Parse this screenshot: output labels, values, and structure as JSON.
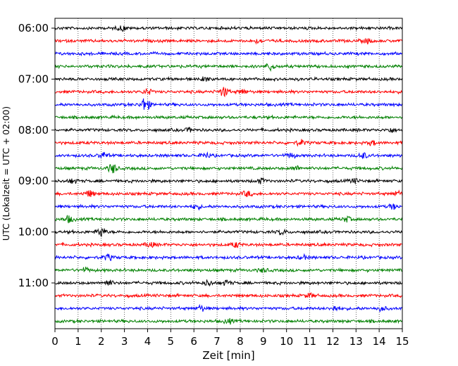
{
  "chart_data": {
    "type": "line",
    "title": "",
    "xlabel": "Zeit  [min]",
    "ylabel": "UTC (Lokalzeit = UTC + 02:00)",
    "xlim": [
      0,
      15
    ],
    "x_ticks": [
      0,
      1,
      2,
      3,
      4,
      5,
      6,
      7,
      8,
      9,
      10,
      11,
      12,
      13,
      14,
      15
    ],
    "y_tick_labels": [
      "06:00",
      "07:00",
      "08:00",
      "09:00",
      "10:00",
      "11:00"
    ],
    "y_tick_trace_index": [
      0,
      4,
      8,
      12,
      16,
      20
    ],
    "grid": "vertical dotted lines at each minute",
    "legend": "none",
    "trace_interval_min": 15,
    "color_cycle": [
      "#000000",
      "#ff0000",
      "#0000ff",
      "#008000"
    ],
    "traces": [
      {
        "start": "06:00",
        "color": "#000000",
        "events": [
          [
            2.9,
            1.0
          ]
        ]
      },
      {
        "start": "06:15",
        "color": "#ff0000",
        "events": [
          [
            8.8,
            0.8
          ],
          [
            13.5,
            0.9
          ]
        ]
      },
      {
        "start": "06:30",
        "color": "#0000ff",
        "events": []
      },
      {
        "start": "06:45",
        "color": "#008000",
        "events": [
          [
            9.3,
            1.5
          ]
        ]
      },
      {
        "start": "07:00",
        "color": "#000000",
        "events": [
          [
            6.5,
            0.7
          ]
        ]
      },
      {
        "start": "07:15",
        "color": "#ff0000",
        "events": [
          [
            4.0,
            1.2
          ],
          [
            7.3,
            2.0
          ],
          [
            8.1,
            1.0
          ]
        ]
      },
      {
        "start": "07:30",
        "color": "#0000ff",
        "events": [
          [
            3.9,
            3.0
          ]
        ]
      },
      {
        "start": "07:45",
        "color": "#008000",
        "events": []
      },
      {
        "start": "08:00",
        "color": "#000000",
        "events": [
          [
            5.8,
            0.8
          ],
          [
            14.5,
            0.8
          ]
        ]
      },
      {
        "start": "08:15",
        "color": "#ff0000",
        "events": [
          [
            10.6,
            1.0
          ],
          [
            13.7,
            0.8
          ]
        ]
      },
      {
        "start": "08:30",
        "color": "#0000ff",
        "events": [
          [
            2.1,
            1.2
          ],
          [
            6.5,
            1.1
          ],
          [
            10.2,
            1.0
          ],
          [
            13.3,
            1.2
          ]
        ]
      },
      {
        "start": "08:45",
        "color": "#008000",
        "events": [
          [
            2.5,
            2.0
          ],
          [
            10.4,
            0.9
          ]
        ]
      },
      {
        "start": "09:00",
        "color": "#000000",
        "events": [
          [
            0.8,
            0.9
          ],
          [
            8.9,
            1.0
          ],
          [
            12.9,
            0.8
          ]
        ]
      },
      {
        "start": "09:15",
        "color": "#ff0000",
        "events": [
          [
            1.5,
            1.3
          ],
          [
            8.3,
            1.1
          ],
          [
            14.8,
            1.0
          ]
        ]
      },
      {
        "start": "09:30",
        "color": "#0000ff",
        "events": [
          [
            6.1,
            0.9
          ],
          [
            14.6,
            1.0
          ]
        ]
      },
      {
        "start": "09:45",
        "color": "#008000",
        "events": [
          [
            0.6,
            1.3
          ],
          [
            12.6,
            1.0
          ]
        ]
      },
      {
        "start": "10:00",
        "color": "#000000",
        "events": [
          [
            2.0,
            2.0
          ],
          [
            9.8,
            0.9
          ]
        ]
      },
      {
        "start": "10:15",
        "color": "#ff0000",
        "events": [
          [
            4.1,
            1.0
          ],
          [
            7.8,
            1.0
          ]
        ]
      },
      {
        "start": "10:30",
        "color": "#0000ff",
        "events": [
          [
            2.3,
            1.1
          ],
          [
            10.7,
            0.9
          ]
        ]
      },
      {
        "start": "10:45",
        "color": "#008000",
        "events": [
          [
            1.3,
            0.9
          ],
          [
            9.0,
            0.8
          ]
        ]
      },
      {
        "start": "11:00",
        "color": "#000000",
        "events": [
          [
            2.3,
            1.2
          ],
          [
            6.6,
            1.1
          ],
          [
            7.4,
            1.0
          ]
        ]
      },
      {
        "start": "11:15",
        "color": "#ff0000",
        "events": [
          [
            11.0,
            0.8
          ]
        ]
      },
      {
        "start": "11:30",
        "color": "#0000ff",
        "events": [
          [
            6.3,
            1.1
          ],
          [
            12.1,
            1.0
          ],
          [
            14.1,
            1.0
          ]
        ]
      },
      {
        "start": "11:45",
        "color": "#008000",
        "events": [
          [
            7.5,
            0.8
          ]
        ]
      }
    ]
  }
}
